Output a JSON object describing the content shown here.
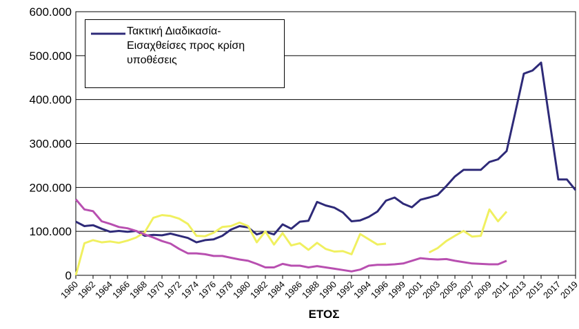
{
  "chart_data": {
    "type": "line",
    "categories": [
      "1960",
      null,
      "1962",
      null,
      "1964",
      null,
      "1966",
      null,
      "1968",
      null,
      "1970",
      null,
      "1972",
      null,
      "1974",
      null,
      "1976",
      null,
      "1978",
      null,
      "1980",
      null,
      "1982",
      null,
      "1984",
      null,
      "1986",
      null,
      "1988",
      null,
      "1990",
      null,
      "1992",
      null,
      "1994",
      null,
      "1996",
      null,
      "1999",
      null,
      "2001",
      null,
      "2003",
      null,
      "2005",
      null,
      "2007",
      null,
      "2009",
      null,
      "2011",
      null,
      "2013",
      null,
      "2015",
      null,
      "2017",
      null,
      "2019"
    ],
    "series": [
      {
        "name": "Τακτική Διαδικασία-Εισαχθείσες προς κρίση υποθέσεις",
        "color": "#2e2a78",
        "values": [
          122000,
          112000,
          114000,
          106000,
          99000,
          101000,
          99000,
          101000,
          90000,
          92000,
          91000,
          95000,
          90000,
          85000,
          75000,
          80000,
          82000,
          90000,
          104000,
          112000,
          109000,
          93000,
          99000,
          93000,
          116000,
          106000,
          122000,
          124000,
          167000,
          159000,
          154000,
          143000,
          123000,
          125000,
          133000,
          145000,
          170000,
          177000,
          163000,
          155000,
          172000,
          177000,
          183000,
          203000,
          225000,
          240000,
          240000,
          240000,
          258000,
          264000,
          283000,
          370000,
          459000,
          466000,
          484000,
          350000,
          218000,
          218000,
          194000
        ]
      },
      {
        "color": "#f0f060",
        "values": [
          0,
          73000,
          80000,
          75000,
          77000,
          74000,
          79000,
          86000,
          98000,
          131000,
          137000,
          135000,
          129000,
          117000,
          90000,
          89000,
          97000,
          110000,
          112000,
          120000,
          112000,
          75000,
          100000,
          70000,
          96000,
          68000,
          73000,
          58000,
          74000,
          60000,
          54000,
          55000,
          48000,
          94000,
          82000,
          70000,
          72000,
          null,
          null,
          null,
          null,
          52000,
          62000,
          78000,
          90000,
          101000,
          88000,
          90000,
          150000,
          123000,
          145000,
          null,
          null,
          null,
          null,
          null,
          null,
          null,
          null
        ]
      },
      {
        "color": "#b84fb0",
        "values": [
          173000,
          150000,
          146000,
          123000,
          117000,
          110000,
          107000,
          101000,
          93000,
          86000,
          78000,
          72000,
          60000,
          50000,
          50000,
          48000,
          44000,
          44000,
          40000,
          36000,
          33000,
          26000,
          18000,
          18000,
          26000,
          22000,
          22000,
          18000,
          21000,
          18000,
          15000,
          12000,
          9000,
          13000,
          22000,
          24000,
          24000,
          25000,
          27000,
          33000,
          39000,
          37000,
          36000,
          37000,
          33000,
          30000,
          27000,
          26000,
          25000,
          25000,
          33000,
          null,
          null,
          null,
          null,
          null,
          null,
          null,
          null
        ]
      }
    ],
    "ylim": [
      0,
      600000
    ],
    "yticks": [
      0,
      {
        "value": 100000,
        "label": "100.000"
      },
      {
        "value": 200000,
        "label": "200.000"
      },
      {
        "value": 300000,
        "label": "300.000"
      },
      {
        "value": 400000,
        "label": "400.000"
      },
      {
        "value": 500000,
        "label": "500.000"
      },
      {
        "value": 600000,
        "label": "600.000"
      }
    ],
    "grid": true,
    "xlabel": "ΕΤΟΣ"
  }
}
